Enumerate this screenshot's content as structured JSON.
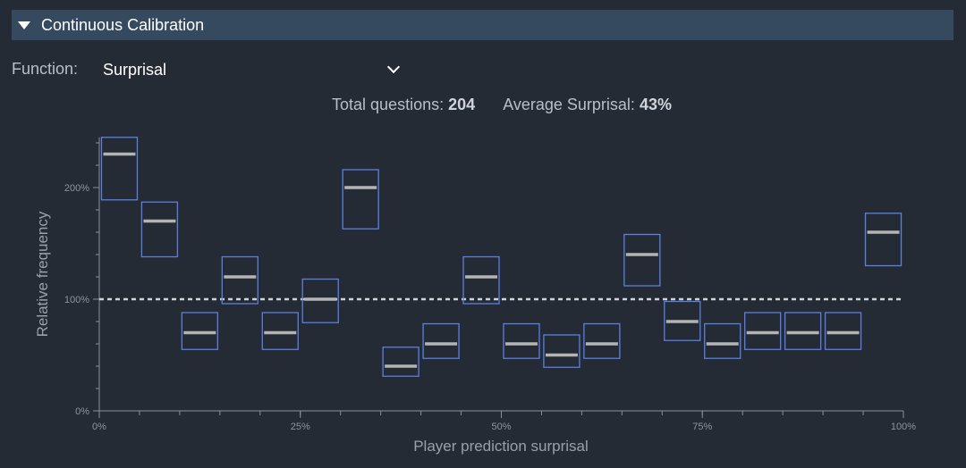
{
  "section": {
    "title": "Continuous Calibration"
  },
  "function": {
    "label": "Function:",
    "value": "Surprisal"
  },
  "stats": {
    "total_label": "Total questions:",
    "total_value": "204",
    "avg_label": "Average Surprisal:",
    "avg_value": "43%"
  },
  "colors": {
    "box": "#5b7fe0",
    "median": "#b4b4b4",
    "reference": "#cfd3d8",
    "axis": "#8a9099"
  },
  "chart_data": {
    "type": "box",
    "xlabel": "Player prediction surprisal",
    "ylabel": "Relative frequency",
    "xlim": [
      0,
      100
    ],
    "ylim": [
      0,
      245
    ],
    "x_ticks": [
      0,
      25,
      50,
      75,
      100
    ],
    "x_tick_labels": [
      "0%",
      "25%",
      "50%",
      "75%",
      "100%"
    ],
    "y_ticks": [
      0,
      100,
      200
    ],
    "y_tick_labels": [
      "0%",
      "100%",
      "200%"
    ],
    "reference_line": 100,
    "bins": [
      {
        "x": 2.5,
        "median": 230,
        "low": 189,
        "high": 245
      },
      {
        "x": 7.5,
        "median": 170,
        "low": 138,
        "high": 187
      },
      {
        "x": 12.5,
        "median": 70,
        "low": 55,
        "high": 88
      },
      {
        "x": 17.5,
        "median": 120,
        "low": 96,
        "high": 138
      },
      {
        "x": 22.5,
        "median": 70,
        "low": 55,
        "high": 88
      },
      {
        "x": 27.5,
        "median": 100,
        "low": 79,
        "high": 118
      },
      {
        "x": 32.5,
        "median": 200,
        "low": 163,
        "high": 216
      },
      {
        "x": 37.5,
        "median": 40,
        "low": 31,
        "high": 57
      },
      {
        "x": 42.5,
        "median": 60,
        "low": 47,
        "high": 78
      },
      {
        "x": 47.5,
        "median": 120,
        "low": 96,
        "high": 138
      },
      {
        "x": 52.5,
        "median": 60,
        "low": 47,
        "high": 78
      },
      {
        "x": 57.5,
        "median": 50,
        "low": 39,
        "high": 68
      },
      {
        "x": 62.5,
        "median": 60,
        "low": 47,
        "high": 78
      },
      {
        "x": 67.5,
        "median": 140,
        "low": 112,
        "high": 158
      },
      {
        "x": 72.5,
        "median": 80,
        "low": 63,
        "high": 98
      },
      {
        "x": 77.5,
        "median": 60,
        "low": 47,
        "high": 78
      },
      {
        "x": 82.5,
        "median": 70,
        "low": 55,
        "high": 88
      },
      {
        "x": 87.5,
        "median": 70,
        "low": 55,
        "high": 88
      },
      {
        "x": 92.5,
        "median": 70,
        "low": 55,
        "high": 88
      },
      {
        "x": 97.5,
        "median": 160,
        "low": 130,
        "high": 177
      }
    ]
  }
}
